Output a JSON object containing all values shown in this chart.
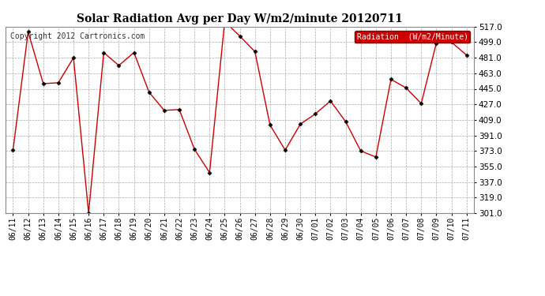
{
  "title": "Solar Radiation Avg per Day W/m2/minute 20120711",
  "copyright": "Copyright 2012 Cartronics.com",
  "legend_label": "Radiation  (W/m2/Minute)",
  "dates": [
    "06/11",
    "06/12",
    "06/13",
    "06/14",
    "06/15",
    "06/16",
    "06/17",
    "06/18",
    "06/19",
    "06/20",
    "06/21",
    "06/22",
    "06/23",
    "06/24",
    "06/25",
    "06/26",
    "06/27",
    "06/28",
    "06/29",
    "06/30",
    "07/01",
    "07/02",
    "07/03",
    "07/04",
    "07/05",
    "07/06",
    "07/07",
    "07/08",
    "07/09",
    "07/10",
    "07/11"
  ],
  "values": [
    374,
    511,
    451,
    452,
    481,
    301,
    487,
    472,
    487,
    441,
    420,
    421,
    375,
    348,
    523,
    506,
    488,
    403,
    374,
    404,
    416,
    431,
    407,
    373,
    366,
    456,
    446,
    428,
    498,
    499,
    484
  ],
  "line_color": "#cc0000",
  "marker_color": "#000000",
  "bg_color": "#ffffff",
  "grid_color": "#aaaaaa",
  "ylim_min": 301.0,
  "ylim_max": 517.0,
  "ytick_step": 18.0,
  "title_fontsize": 10,
  "copyright_fontsize": 7,
  "tick_fontsize": 7,
  "ytick_fontsize": 7.5,
  "legend_bg": "#cc0000",
  "legend_text_color": "#ffffff",
  "legend_fontsize": 7
}
